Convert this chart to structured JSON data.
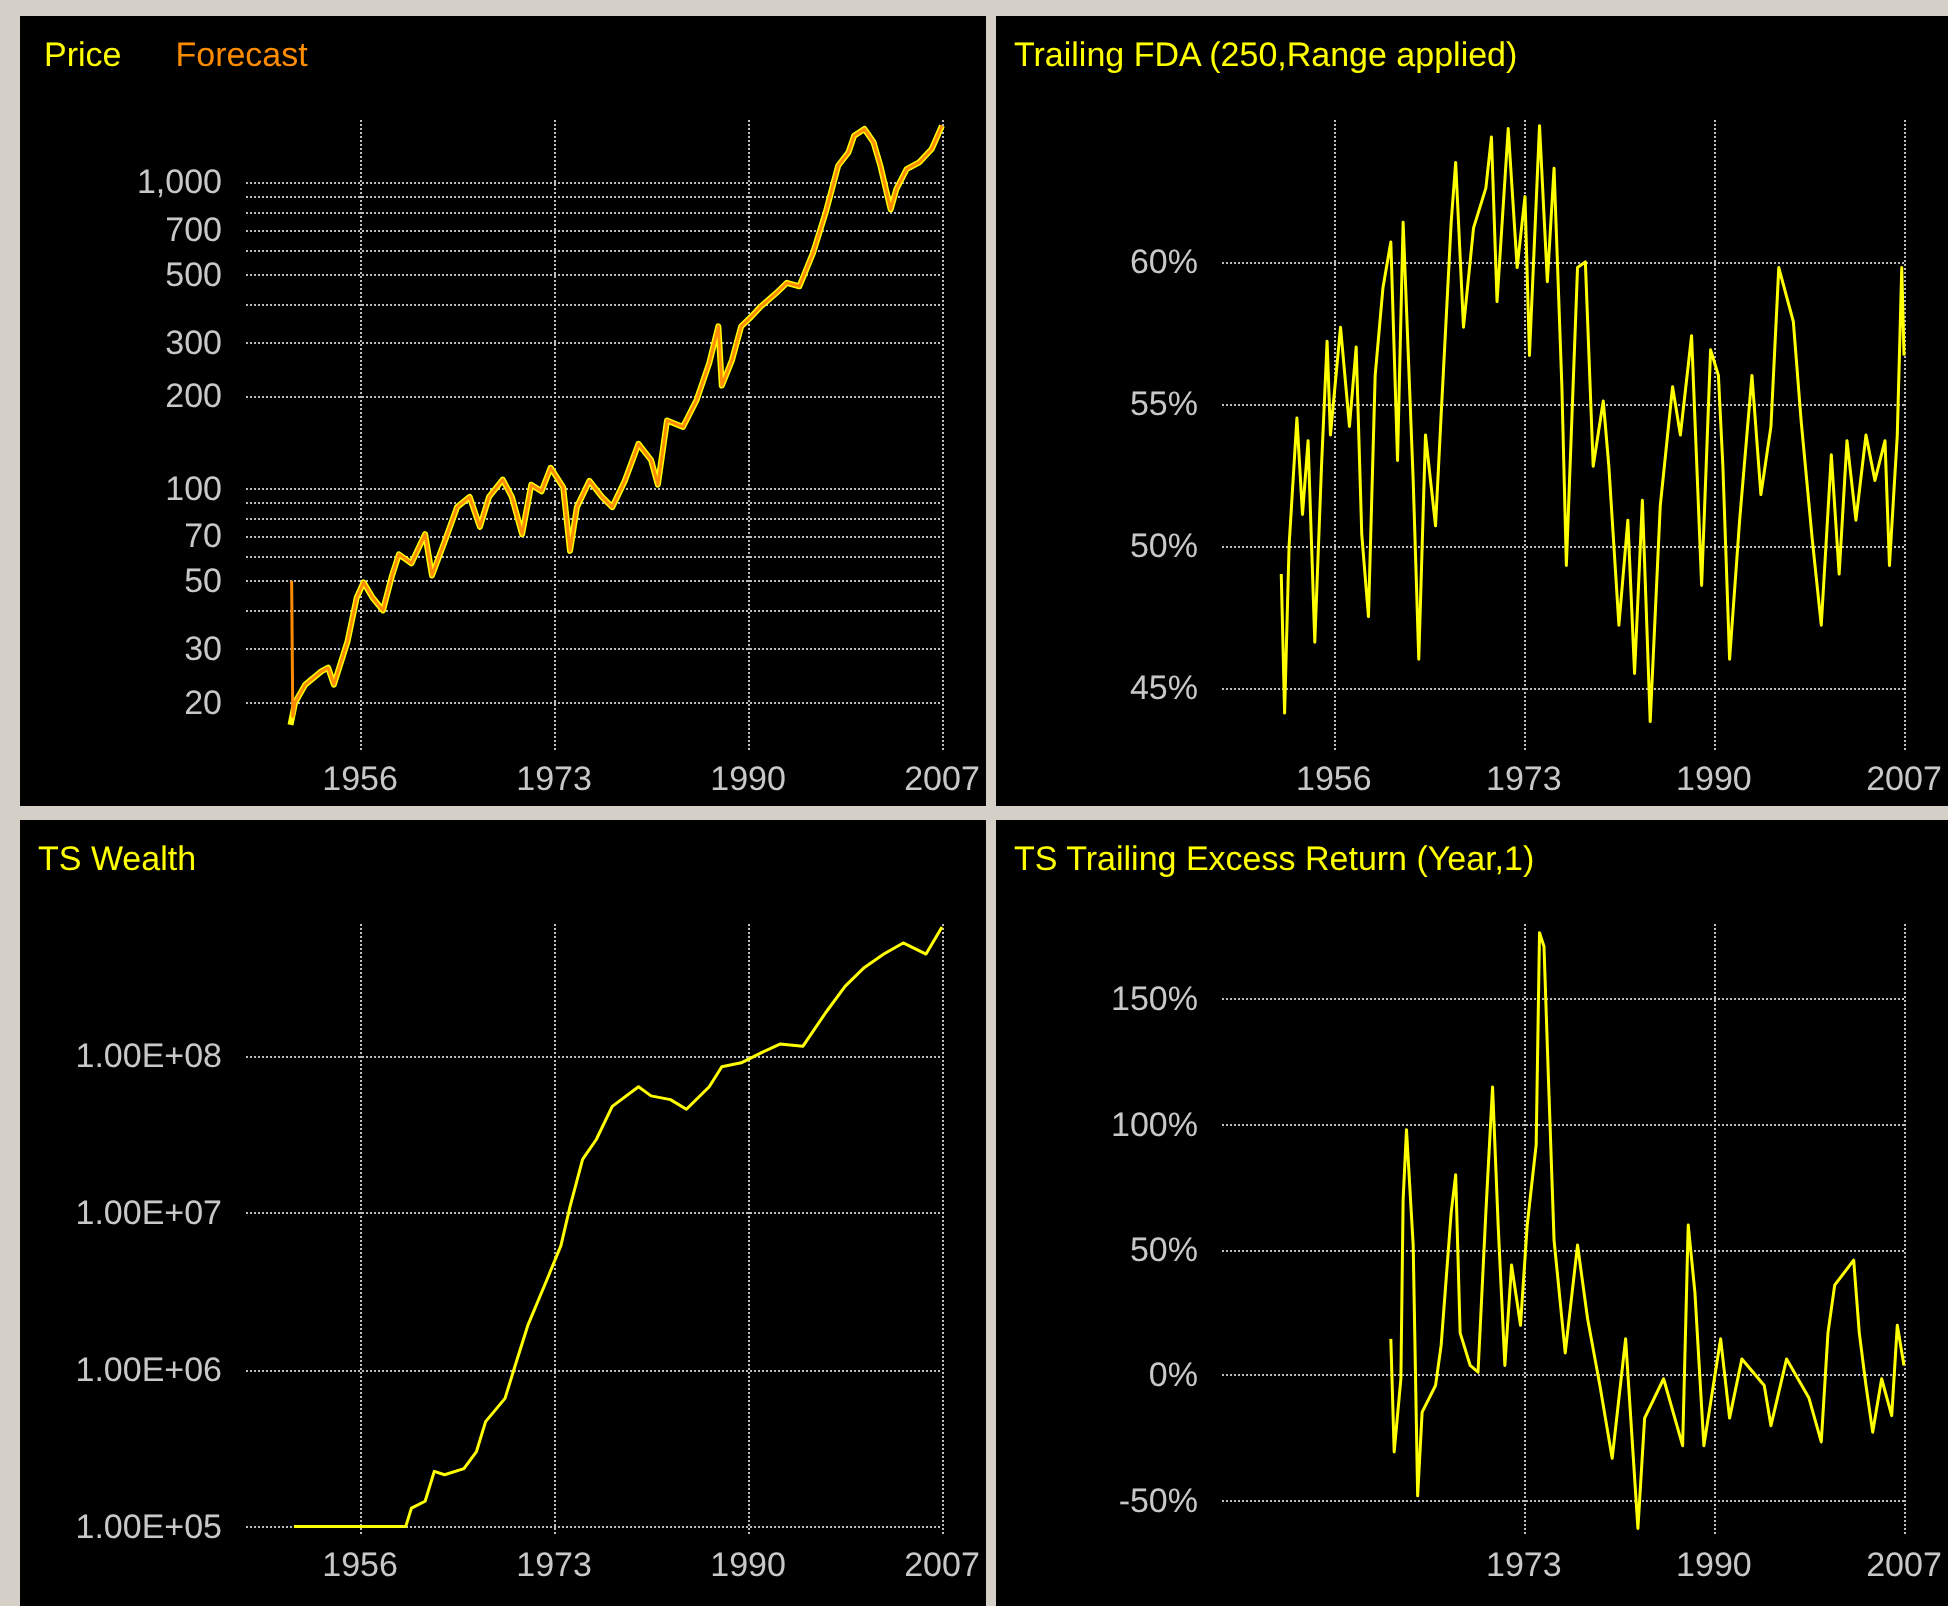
{
  "chart_data": [
    {
      "type": "line",
      "legend": "top left",
      "grid": true,
      "log": "y",
      "xlim": [
        1946,
        2007
      ],
      "xticks": [
        1956,
        1973,
        1990,
        2007
      ],
      "ylim": [
        14,
        1600
      ],
      "yticks": [
        20,
        30,
        {
          "value": 40,
          "label": null
        },
        50,
        {
          "value": 60,
          "label": null
        },
        70,
        {
          "value": 80,
          "label": null
        },
        {
          "value": 90,
          "label": null
        },
        100,
        200,
        300,
        {
          "value": 400,
          "label": null
        },
        500,
        {
          "value": 600,
          "label": null
        },
        700,
        {
          "value": 800,
          "label": null
        },
        {
          "value": 900,
          "label": null
        },
        {
          "value": 1000,
          "label": "1,000"
        }
      ],
      "series": [
        {
          "name": "Price",
          "color": "#ffff00",
          "x": [
            1949.9,
            1950.3,
            1951.2,
            1952.6,
            1953.2,
            1953.7,
            1954.9,
            1955.7,
            1956.3,
            1957.1,
            1958,
            1958.8,
            1959.4,
            1960.5,
            1961.7,
            1962.3,
            1963.4,
            1964.5,
            1965.6,
            1966.5,
            1967.3,
            1968.5,
            1969.3,
            1970.2,
            1971,
            1971.9,
            1972.7,
            1973.8,
            1974.4,
            1975,
            1976.1,
            1977.2,
            1978.1,
            1979.2,
            1980.4,
            1981.5,
            1982.1,
            1982.9,
            1984.3,
            1985.5,
            1986.6,
            1987.4,
            1987.7,
            1988.6,
            1989.4,
            1990.3,
            1991.1,
            1992.5,
            1993.4,
            1994.5,
            1995.7,
            1996.8,
            1997.9,
            1998.8,
            1999.3,
            2000.2,
            2001,
            2001.6,
            2002.5,
            2003,
            2003.9,
            2005,
            2006.1,
            2007
          ],
          "values": [
            16.9,
            20,
            22.9,
            25.3,
            26,
            22.9,
            31.7,
            44,
            49.4,
            44,
            40,
            52,
            61,
            57,
            71,
            52,
            67,
            87,
            94,
            75,
            94,
            107,
            94,
            71,
            103,
            98,
            117,
            101,
            62.6,
            87,
            106,
            94,
            87,
            106,
            140,
            124,
            103,
            167,
            159,
            195,
            257,
            339,
            217,
            263,
            339,
            365,
            393,
            436,
            470,
            458,
            589,
            797,
            1134,
            1254,
            1422,
            1496,
            1353,
            1134,
            817,
            951,
            1106,
            1163,
            1286,
            1534
          ]
        },
        {
          "name": "Forecast",
          "color": "#ff8c00",
          "x": [
            1950,
            1950.1,
            1950.3,
            1951.2,
            1952.6,
            1953.2,
            1953.7,
            1954.9,
            1955.7,
            1956.3,
            1957.1,
            1958,
            1958.8,
            1959.4,
            1960.5,
            1961.7,
            1962.3,
            1963.4,
            1964.5,
            1965.6,
            1966.5,
            1967.3,
            1968.5,
            1969.3,
            1970.2,
            1971,
            1971.9,
            1972.7,
            1973.8,
            1974.4,
            1975,
            1976.1,
            1977.2,
            1978.1,
            1979.2,
            1980.4,
            1981.5,
            1982.1,
            1982.9,
            1984.3,
            1985.5,
            1986.6,
            1987.4,
            1987.7,
            1988.6,
            1989.4,
            1990.3,
            1991.1,
            1992.5,
            1993.4,
            1994.5,
            1995.7,
            1996.8,
            1997.9,
            1998.8,
            1999.3,
            2000.2,
            2001,
            2001.6,
            2002.5,
            2003,
            2003.9,
            2005,
            2006.1,
            2007
          ],
          "values": [
            50,
            18,
            20,
            22.9,
            25.3,
            26,
            22.9,
            31.7,
            44,
            49.4,
            44,
            40,
            52,
            61,
            57,
            71,
            52,
            67,
            87,
            94,
            75,
            94,
            107,
            94,
            71,
            103,
            98,
            117,
            101,
            62.6,
            87,
            106,
            94,
            87,
            106,
            140,
            124,
            103,
            167,
            159,
            195,
            257,
            339,
            217,
            263,
            339,
            365,
            393,
            436,
            470,
            458,
            589,
            797,
            1134,
            1254,
            1422,
            1496,
            1353,
            1134,
            817,
            951,
            1106,
            1163,
            1286,
            1534
          ]
        }
      ]
    },
    {
      "type": "line",
      "title": "Trailing FDA (250,Range applied)",
      "grid": true,
      "xlim": [
        1946,
        2007
      ],
      "xticks": [
        1956,
        1973,
        1990,
        2007
      ],
      "ylim": [
        42.8,
        65
      ],
      "yticks": [
        {
          "value": 45,
          "label": "45%"
        },
        {
          "value": 50,
          "label": "50%"
        },
        {
          "value": 55,
          "label": "55%"
        },
        {
          "value": 60,
          "label": "60%"
        }
      ],
      "series": [
        {
          "color": "#ffff00",
          "x": [
            1951.3,
            1951.6,
            1952,
            1952.7,
            1953.2,
            1953.7,
            1954.3,
            1954.9,
            1955.4,
            1955.7,
            1956.6,
            1957.4,
            1958,
            1958.5,
            1959.1,
            1959.7,
            1960.4,
            1961.1,
            1961.7,
            1962.2,
            1963.1,
            1963.6,
            1964.2,
            1965.1,
            1965.6,
            1966.5,
            1966.9,
            1967.6,
            1968.5,
            1969.6,
            1970.1,
            1970.6,
            1971.6,
            1972.4,
            1973.1,
            1973.5,
            1974.4,
            1975.1,
            1975.7,
            1976.4,
            1976.8,
            1977.8,
            1978.5,
            1979.2,
            1980.1,
            1980.6,
            1981.5,
            1982.3,
            1982.9,
            1983.6,
            1984.3,
            1985.2,
            1986.3,
            1987,
            1988,
            1988.9,
            1989.7,
            1990.4,
            1990.8,
            1991.4,
            1992.3,
            1993.4,
            1994.2,
            1995.1,
            1995.8,
            1997.1,
            1997.8,
            1998.8,
            1999.6,
            2000.5,
            2001.2,
            2001.9,
            2002.7,
            2003.6,
            2004.4,
            2005.3,
            2005.7,
            2006.4,
            2006.8,
            2007
          ],
          "values": [
            49,
            44.1,
            50,
            54.5,
            51.1,
            53.7,
            46.6,
            52.8,
            57.2,
            53.9,
            57.7,
            54.2,
            57,
            50.4,
            47.5,
            56,
            59.1,
            60.7,
            53,
            61.4,
            52.3,
            46,
            53.9,
            50.7,
            54.6,
            61.4,
            63.5,
            57.7,
            61.2,
            62.6,
            64.4,
            58.6,
            64.7,
            59.8,
            62.3,
            56.7,
            64.8,
            59.3,
            63.3,
            55.6,
            49.3,
            59.8,
            60,
            52.8,
            55.1,
            52.8,
            47.2,
            50.9,
            45.5,
            51.6,
            43.8,
            51.4,
            55.6,
            53.9,
            57.4,
            48.6,
            56.9,
            56,
            52.8,
            46,
            50.9,
            56,
            51.8,
            54.2,
            59.8,
            57.9,
            54.4,
            50.2,
            47.2,
            53.2,
            49,
            53.7,
            50.9,
            53.9,
            52.3,
            53.7,
            49.3,
            53.9,
            59.8,
            56.7
          ]
        }
      ]
    },
    {
      "type": "line",
      "title": "TS Wealth",
      "grid": true,
      "log": "y",
      "xlim": [
        1946,
        2007
      ],
      "xticks": [
        1956,
        1973,
        1990,
        2007
      ],
      "ylim": [
        87000,
        700000000
      ],
      "yticks": [
        {
          "value": 100000,
          "label": "1.00E+05"
        },
        {
          "value": 1000000,
          "label": "1.00E+06"
        },
        {
          "value": 10000000,
          "label": "1.00E+07"
        },
        {
          "value": 100000000,
          "label": "1.00E+08"
        }
      ],
      "series": [
        {
          "color": "#ffff00",
          "x": [
            1950.2,
            1960,
            1960.5,
            1961.7,
            1962.5,
            1963.4,
            1965.1,
            1966.2,
            1967,
            1968.7,
            1969.6,
            1970.7,
            1972.4,
            1973.6,
            1974.4,
            1975.5,
            1976.7,
            1978.1,
            1980.4,
            1981.5,
            1983.2,
            1984.6,
            1986.6,
            1987.7,
            1989.4,
            1991.1,
            1992.8,
            1994.8,
            1996.8,
            1998.5,
            2000.2,
            2001.9,
            2003.6,
            2005.6,
            2007
          ],
          "values": [
            100000,
            100000,
            131000,
            145000,
            225000,
            214000,
            234000,
            301000,
            467000,
            657000,
            1070000,
            1920000,
            3800000,
            6200000,
            11000000,
            22000000,
            29500000,
            48000000,
            64000000,
            56000000,
            53000000,
            46000000,
            64000000,
            86000000,
            91000000,
            105000000,
            120000000,
            116000000,
            190000000,
            280000000,
            370000000,
            450000000,
            530000000,
            450000000,
            670000000
          ]
        }
      ]
    },
    {
      "type": "line",
      "title": "TS Trailing Excess Return (Year,1)",
      "grid": true,
      "xlim": [
        1946,
        2007
      ],
      "xticks": [
        1973,
        1990,
        2007
      ],
      "ylim": [
        -64,
        180
      ],
      "yticks": [
        {
          "value": -50,
          "label": "-50%"
        },
        {
          "value": 0,
          "label": "0%"
        },
        {
          "value": 50,
          "label": "50%"
        },
        {
          "value": 100,
          "label": "100%"
        },
        {
          "value": 150,
          "label": "150%"
        }
      ],
      "series": [
        {
          "color": "#ffff00",
          "x": [
            1961.1,
            1961.4,
            1962,
            1962.2,
            1962.5,
            1963.1,
            1963.5,
            1963.9,
            1965.1,
            1965.6,
            1966.5,
            1966.9,
            1967.3,
            1968.2,
            1968.9,
            1969.6,
            1970.2,
            1970.7,
            1971.3,
            1971.9,
            1972.7,
            1973.3,
            1974.1,
            1974.4,
            1974.8,
            1975.2,
            1975.7,
            1976.7,
            1977.8,
            1978.7,
            1979.8,
            1980.9,
            1982.1,
            1983.2,
            1983.8,
            1985.5,
            1987.2,
            1987.7,
            1988.3,
            1989.1,
            1990.6,
            1991.4,
            1992.5,
            1994.5,
            1995.1,
            1996.5,
            1998.5,
            1999.6,
            2000.2,
            2000.8,
            2002.5,
            2003,
            2003.6,
            2004.2,
            2005,
            2005.9,
            2006.4,
            2007
          ],
          "values": [
            14.6,
            -30.5,
            -1.3,
            70,
            98,
            52,
            -48,
            -14.6,
            -4,
            12,
            65,
            80,
            17,
            4,
            1.3,
            65,
            115,
            60,
            4,
            44,
            20,
            60,
            92,
            176.5,
            171,
            118,
            54,
            9,
            52,
            22.6,
            -4,
            -33,
            14.6,
            -61,
            -17,
            -1.3,
            -28,
            60,
            33,
            -28,
            14.6,
            -17,
            6.6,
            -4,
            -20,
            6.6,
            -9,
            -26.5,
            17,
            36,
            46,
            17,
            -4,
            -22.6,
            -1.3,
            -16,
            20,
            4
          ]
        }
      ]
    }
  ]
}
